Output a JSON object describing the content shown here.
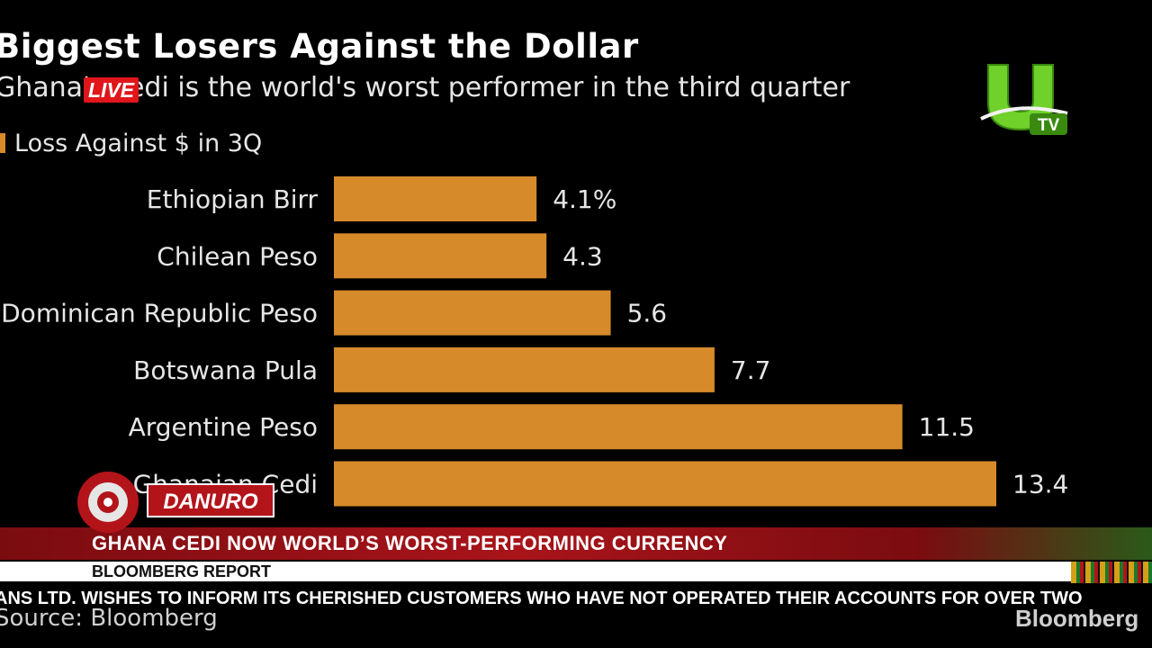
{
  "chart_data": {
    "type": "bar",
    "orientation": "horizontal",
    "title": "Biggest Losers Against the Dollar",
    "subtitle": "Ghana's cedi is the world's worst performer in the third quarter",
    "legend": [
      "Loss Against $ in 3Q"
    ],
    "categories": [
      "Ethiopian Birr",
      "Chilean Peso",
      "Dominican Republic Peso",
      "Botswana Pula",
      "Argentine Peso",
      "Ghanaian Cedi"
    ],
    "values": [
      4.1,
      4.3,
      5.6,
      7.7,
      11.5,
      13.4
    ],
    "value_labels": [
      "4.1%",
      "4.3",
      "5.6",
      "7.7",
      "11.5",
      "13.4"
    ],
    "xlim": [
      0,
      13.4
    ],
    "grid": false,
    "bar_color": "#d68a2a",
    "source": "Source: Bloomberg"
  },
  "title_text": "Biggest Losers Against the Dollar",
  "subtitle_text": "Ghana's cedi is the world's worst performer in the third quarter",
  "live_badge": "LIVE",
  "legend_label": "Loss Against $ in 3Q",
  "source_text": "Source: Bloomberg",
  "brand_text": "Bloomberg",
  "channel_logo": {
    "letter": "U",
    "suffix": "TV"
  },
  "show_logo": {
    "name": "DANURO"
  },
  "lower_third": {
    "headline": "GHANA CEDI NOW WORLD’S WORST-PERFORMING CURRENCY",
    "subline": "BLOOMBERG REPORT"
  },
  "ticker": {
    "text": "ANS LTD. WISHES TO INFORM ITS CHERISHED CUSTOMERS WHO HAVE NOT OPERATED THEIR ACCOUNTS FOR OVER TWO"
  },
  "colors": {
    "bar": "#d68a2a",
    "live": "#e0161b",
    "banner": "#a8141a",
    "logo_green": "#6fd12a"
  }
}
